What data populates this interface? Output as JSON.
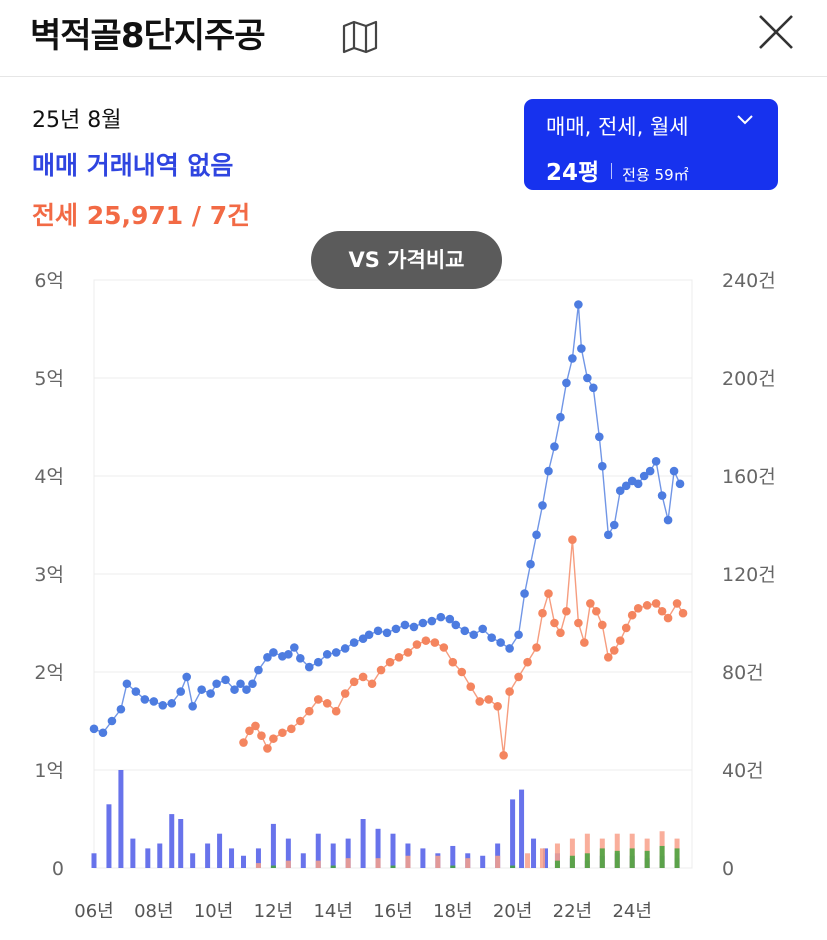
{
  "header": {
    "title": "벽적골8단지주공",
    "map_icon": "map-icon",
    "close_icon": "close-icon"
  },
  "summary": {
    "period": "25년 8월",
    "sale_text": "매매 거래내역 없음",
    "jeonse_text": "전세 25,971 / 7건"
  },
  "filter": {
    "types": "매매, 전세, 월세",
    "size": "24평",
    "area": "전용 59㎡"
  },
  "compare_button": "VS 가격비교",
  "colors": {
    "sale": "#4d7ce0",
    "jeonse": "#f4855f",
    "volume_sale": "#4d5ae8",
    "volume_jeonse": "#f8a08a",
    "volume_rent": "#43a33c",
    "filter_bg": "#1732ee"
  },
  "chart_data": {
    "type": "line",
    "x_ticks": [
      "06년",
      "08년",
      "10년",
      "12년",
      "14년",
      "16년",
      "18년",
      "20년",
      "22년",
      "24년"
    ],
    "y_left": {
      "unit": "억",
      "range": [
        0,
        6
      ],
      "tick_labels": [
        "0",
        "1억",
        "2억",
        "3억",
        "4억",
        "5억",
        "6억"
      ]
    },
    "y_right": {
      "unit": "건",
      "range": [
        0,
        240
      ],
      "tick_labels": [
        "0",
        "40건",
        "80건",
        "120건",
        "160건",
        "200건",
        "240건"
      ]
    },
    "x_range": [
      2006,
      2026
    ],
    "grid": true,
    "series": [
      {
        "key": "sale",
        "points": [
          [
            2006.0,
            1.42
          ],
          [
            2006.3,
            1.38
          ],
          [
            2006.6,
            1.5
          ],
          [
            2006.9,
            1.62
          ],
          [
            2007.1,
            1.88
          ],
          [
            2007.4,
            1.8
          ],
          [
            2007.7,
            1.72
          ],
          [
            2008.0,
            1.7
          ],
          [
            2008.3,
            1.66
          ],
          [
            2008.6,
            1.68
          ],
          [
            2008.9,
            1.8
          ],
          [
            2009.1,
            1.95
          ],
          [
            2009.3,
            1.65
          ],
          [
            2009.6,
            1.82
          ],
          [
            2009.9,
            1.78
          ],
          [
            2010.1,
            1.88
          ],
          [
            2010.4,
            1.92
          ],
          [
            2010.7,
            1.82
          ],
          [
            2010.9,
            1.88
          ],
          [
            2011.1,
            1.82
          ],
          [
            2011.3,
            1.88
          ],
          [
            2011.5,
            2.02
          ],
          [
            2011.8,
            2.15
          ],
          [
            2012.0,
            2.2
          ],
          [
            2012.3,
            2.16
          ],
          [
            2012.5,
            2.18
          ],
          [
            2012.7,
            2.25
          ],
          [
            2012.9,
            2.14
          ],
          [
            2013.2,
            2.05
          ],
          [
            2013.5,
            2.1
          ],
          [
            2013.8,
            2.18
          ],
          [
            2014.1,
            2.2
          ],
          [
            2014.4,
            2.24
          ],
          [
            2014.7,
            2.3
          ],
          [
            2015.0,
            2.34
          ],
          [
            2015.2,
            2.38
          ],
          [
            2015.5,
            2.42
          ],
          [
            2015.8,
            2.4
          ],
          [
            2016.1,
            2.44
          ],
          [
            2016.4,
            2.48
          ],
          [
            2016.7,
            2.46
          ],
          [
            2017.0,
            2.5
          ],
          [
            2017.3,
            2.52
          ],
          [
            2017.6,
            2.56
          ],
          [
            2017.9,
            2.54
          ],
          [
            2018.1,
            2.48
          ],
          [
            2018.4,
            2.42
          ],
          [
            2018.7,
            2.38
          ],
          [
            2019.0,
            2.44
          ],
          [
            2019.3,
            2.35
          ],
          [
            2019.6,
            2.3
          ],
          [
            2019.9,
            2.24
          ],
          [
            2020.2,
            2.38
          ],
          [
            2020.4,
            2.8
          ],
          [
            2020.6,
            3.1
          ],
          [
            2020.8,
            3.4
          ],
          [
            2021.0,
            3.7
          ],
          [
            2021.2,
            4.05
          ],
          [
            2021.4,
            4.3
          ],
          [
            2021.6,
            4.6
          ],
          [
            2021.8,
            4.95
          ],
          [
            2022.0,
            5.2
          ],
          [
            2022.2,
            5.75
          ],
          [
            2022.3,
            5.3
          ],
          [
            2022.5,
            5.0
          ],
          [
            2022.7,
            4.9
          ],
          [
            2022.9,
            4.4
          ],
          [
            2023.0,
            4.1
          ],
          [
            2023.2,
            3.4
          ],
          [
            2023.4,
            3.5
          ],
          [
            2023.6,
            3.85
          ],
          [
            2023.8,
            3.9
          ],
          [
            2024.0,
            3.95
          ],
          [
            2024.2,
            3.92
          ],
          [
            2024.4,
            4.0
          ],
          [
            2024.6,
            4.05
          ],
          [
            2024.8,
            4.15
          ],
          [
            2025.0,
            3.8
          ],
          [
            2025.2,
            3.55
          ],
          [
            2025.4,
            4.05
          ],
          [
            2025.6,
            3.92
          ]
        ]
      },
      {
        "key": "jeonse",
        "points": [
          [
            2011.0,
            1.28
          ],
          [
            2011.2,
            1.4
          ],
          [
            2011.4,
            1.45
          ],
          [
            2011.6,
            1.35
          ],
          [
            2011.8,
            1.22
          ],
          [
            2012.0,
            1.32
          ],
          [
            2012.3,
            1.38
          ],
          [
            2012.6,
            1.42
          ],
          [
            2012.9,
            1.5
          ],
          [
            2013.2,
            1.6
          ],
          [
            2013.5,
            1.72
          ],
          [
            2013.8,
            1.68
          ],
          [
            2014.1,
            1.6
          ],
          [
            2014.4,
            1.78
          ],
          [
            2014.7,
            1.9
          ],
          [
            2015.0,
            1.95
          ],
          [
            2015.3,
            1.88
          ],
          [
            2015.6,
            2.02
          ],
          [
            2015.9,
            2.1
          ],
          [
            2016.2,
            2.15
          ],
          [
            2016.5,
            2.2
          ],
          [
            2016.8,
            2.28
          ],
          [
            2017.1,
            2.32
          ],
          [
            2017.4,
            2.3
          ],
          [
            2017.7,
            2.25
          ],
          [
            2018.0,
            2.1
          ],
          [
            2018.3,
            2.0
          ],
          [
            2018.6,
            1.85
          ],
          [
            2018.9,
            1.7
          ],
          [
            2019.2,
            1.72
          ],
          [
            2019.5,
            1.65
          ],
          [
            2019.7,
            1.15
          ],
          [
            2019.9,
            1.8
          ],
          [
            2020.2,
            1.95
          ],
          [
            2020.5,
            2.1
          ],
          [
            2020.8,
            2.25
          ],
          [
            2021.0,
            2.6
          ],
          [
            2021.2,
            2.8
          ],
          [
            2021.4,
            2.5
          ],
          [
            2021.6,
            2.4
          ],
          [
            2021.8,
            2.62
          ],
          [
            2022.0,
            3.35
          ],
          [
            2022.2,
            2.5
          ],
          [
            2022.4,
            2.3
          ],
          [
            2022.6,
            2.7
          ],
          [
            2022.8,
            2.62
          ],
          [
            2023.0,
            2.48
          ],
          [
            2023.2,
            2.15
          ],
          [
            2023.4,
            2.22
          ],
          [
            2023.6,
            2.32
          ],
          [
            2023.8,
            2.45
          ],
          [
            2024.0,
            2.58
          ],
          [
            2024.2,
            2.65
          ],
          [
            2024.5,
            2.68
          ],
          [
            2024.8,
            2.7
          ],
          [
            2025.0,
            2.62
          ],
          [
            2025.2,
            2.55
          ],
          [
            2025.5,
            2.7
          ],
          [
            2025.7,
            2.6
          ]
        ]
      }
    ],
    "volume": {
      "sale": [
        [
          2006.0,
          6
        ],
        [
          2006.5,
          26
        ],
        [
          2006.9,
          40
        ],
        [
          2007.3,
          12
        ],
        [
          2007.8,
          8
        ],
        [
          2008.2,
          10
        ],
        [
          2008.6,
          22
        ],
        [
          2008.9,
          20
        ],
        [
          2009.3,
          6
        ],
        [
          2009.8,
          10
        ],
        [
          2010.2,
          14
        ],
        [
          2010.6,
          8
        ],
        [
          2011.0,
          5
        ],
        [
          2011.5,
          8
        ],
        [
          2012.0,
          18
        ],
        [
          2012.5,
          12
        ],
        [
          2013.0,
          6
        ],
        [
          2013.5,
          14
        ],
        [
          2014.0,
          10
        ],
        [
          2014.5,
          12
        ],
        [
          2015.0,
          20
        ],
        [
          2015.5,
          16
        ],
        [
          2016.0,
          14
        ],
        [
          2016.5,
          10
        ],
        [
          2017.0,
          8
        ],
        [
          2017.5,
          6
        ],
        [
          2018.0,
          9
        ],
        [
          2018.5,
          6
        ],
        [
          2019.0,
          5
        ],
        [
          2019.5,
          10
        ],
        [
          2020.0,
          28
        ],
        [
          2020.3,
          32
        ],
        [
          2020.7,
          12
        ],
        [
          2021.1,
          8
        ],
        [
          2021.5,
          6
        ],
        [
          2022.0,
          4
        ],
        [
          2022.5,
          3
        ],
        [
          2023.0,
          5
        ],
        [
          2023.5,
          6
        ],
        [
          2024.0,
          5
        ],
        [
          2024.5,
          4
        ],
        [
          2025.0,
          5
        ],
        [
          2025.5,
          4
        ]
      ],
      "jeonse": [
        [
          2011.5,
          2
        ],
        [
          2012.5,
          3
        ],
        [
          2013.5,
          3
        ],
        [
          2014.5,
          4
        ],
        [
          2015.5,
          4
        ],
        [
          2016.5,
          5
        ],
        [
          2017.5,
          5
        ],
        [
          2018.5,
          4
        ],
        [
          2019.5,
          5
        ],
        [
          2020.5,
          6
        ],
        [
          2021.0,
          8
        ],
        [
          2021.5,
          10
        ],
        [
          2022.0,
          12
        ],
        [
          2022.5,
          14
        ],
        [
          2023.0,
          12
        ],
        [
          2023.5,
          14
        ],
        [
          2024.0,
          14
        ],
        [
          2024.5,
          12
        ],
        [
          2025.0,
          15
        ],
        [
          2025.5,
          12
        ]
      ],
      "rent": [
        [
          2012,
          1
        ],
        [
          2014,
          1
        ],
        [
          2016,
          1
        ],
        [
          2018,
          1
        ],
        [
          2020,
          1
        ],
        [
          2021.5,
          3
        ],
        [
          2022.0,
          5
        ],
        [
          2022.5,
          6
        ],
        [
          2023.0,
          8
        ],
        [
          2023.5,
          7
        ],
        [
          2024.0,
          8
        ],
        [
          2024.5,
          7
        ],
        [
          2025.0,
          9
        ],
        [
          2025.5,
          8
        ]
      ]
    }
  }
}
